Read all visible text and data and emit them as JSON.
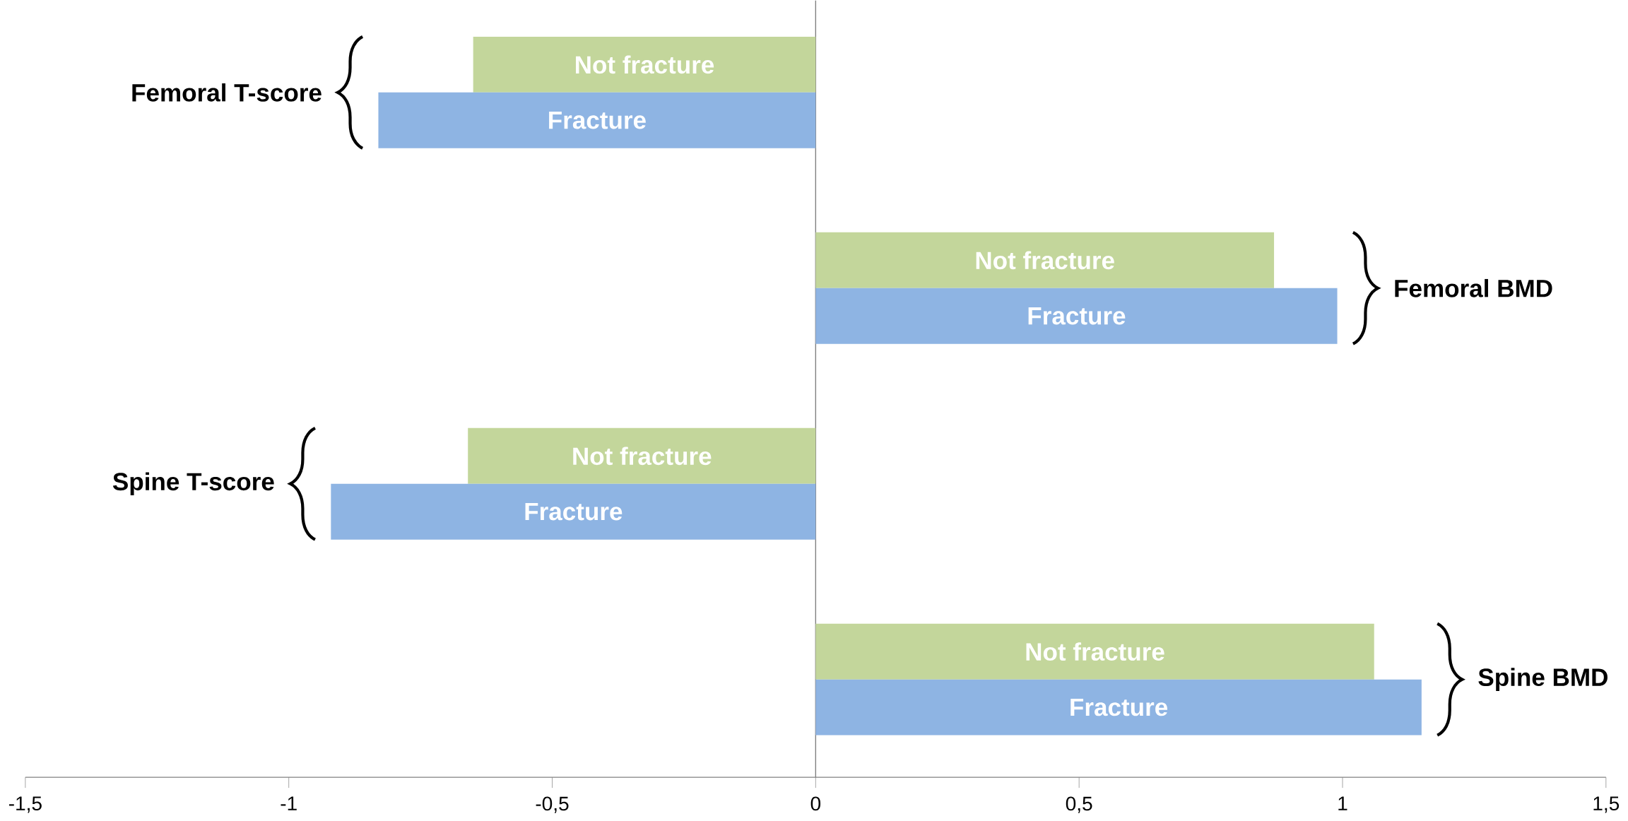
{
  "chart_data": {
    "type": "bar",
    "orientation": "horizontal",
    "categories": [
      "Femoral T-score",
      "Femoral BMD",
      "Spine T-score",
      "Spine BMD"
    ],
    "series": [
      {
        "name": "Not fracture",
        "color": "#c3d69b",
        "values": [
          -0.65,
          0.87,
          -0.66,
          1.06
        ]
      },
      {
        "name": "Fracture",
        "color": "#8eb4e3",
        "values": [
          -0.83,
          0.99,
          -0.92,
          1.15
        ]
      }
    ],
    "xlim": [
      -1.5,
      1.5
    ],
    "xticks": [
      {
        "value": -1.5,
        "label": "-1,5"
      },
      {
        "value": -1,
        "label": "-1"
      },
      {
        "value": -0.5,
        "label": "-0,5"
      },
      0,
      {
        "value": 0.5,
        "label": "0,5"
      },
      1,
      {
        "value": 1.5,
        "label": "1,5"
      }
    ],
    "legend": false
  }
}
